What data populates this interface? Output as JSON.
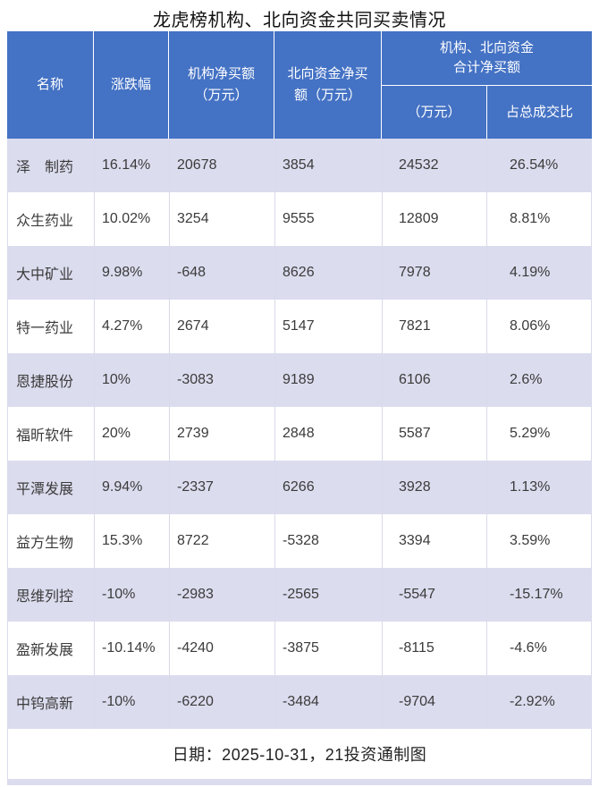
{
  "colors": {
    "header_bg": "#4472C4",
    "header_text": "#FFFFFF",
    "row_alt_bg": "#DBDCEE",
    "grid_line": "#D9DAEA",
    "body_text": "#3B3B3B",
    "title_text": "#111111"
  },
  "chart_data": {
    "type": "table",
    "title": "龙虎榜机构、北向资金共同买卖情况",
    "header": {
      "name": "名称",
      "change": "涨跌幅",
      "inst_line1": "机构净买额",
      "inst_line2": "（万元）",
      "north_line1": "北向资金净买",
      "north_line2": "额（万元）",
      "combined_line1": "机构、北向资金",
      "combined_line2": "合计净买额",
      "combined_amount": "（万元）",
      "combined_ratio": "占总成交比"
    },
    "rows": [
      {
        "name": "泽　制药",
        "change": "16.14%",
        "inst": "20678",
        "north": "3854",
        "total": "24532",
        "ratio": "26.54%"
      },
      {
        "name": "众生药业",
        "change": "10.02%",
        "inst": "3254",
        "north": "9555",
        "total": "12809",
        "ratio": "8.81%"
      },
      {
        "name": "大中矿业",
        "change": "9.98%",
        "inst": "-648",
        "north": "8626",
        "total": "7978",
        "ratio": "4.19%"
      },
      {
        "name": "特一药业",
        "change": "4.27%",
        "inst": "2674",
        "north": "5147",
        "total": "7821",
        "ratio": "8.06%"
      },
      {
        "name": "恩捷股份",
        "change": "10%",
        "inst": "-3083",
        "north": "9189",
        "total": "6106",
        "ratio": "2.6%"
      },
      {
        "name": "福昕软件",
        "change": "20%",
        "inst": "2739",
        "north": "2848",
        "total": "5587",
        "ratio": "5.29%"
      },
      {
        "name": "平潭发展",
        "change": "9.94%",
        "inst": "-2337",
        "north": "6266",
        "total": "3928",
        "ratio": "1.13%"
      },
      {
        "name": "益方生物",
        "change": "15.3%",
        "inst": "8722",
        "north": "-5328",
        "total": "3394",
        "ratio": "3.59%"
      },
      {
        "name": "思维列控",
        "change": "-10%",
        "inst": "-2983",
        "north": "-2565",
        "total": "-5547",
        "ratio": "-15.17%"
      },
      {
        "name": "盈新发展",
        "change": "-10.14%",
        "inst": "-4240",
        "north": "-3875",
        "total": "-8115",
        "ratio": "-4.6%"
      },
      {
        "name": "中钨高新",
        "change": "-10%",
        "inst": "-6220",
        "north": "-3484",
        "total": "-9704",
        "ratio": "-2.92%"
      }
    ],
    "footer_note": "日期：2025-10-31，21投资通制图"
  }
}
